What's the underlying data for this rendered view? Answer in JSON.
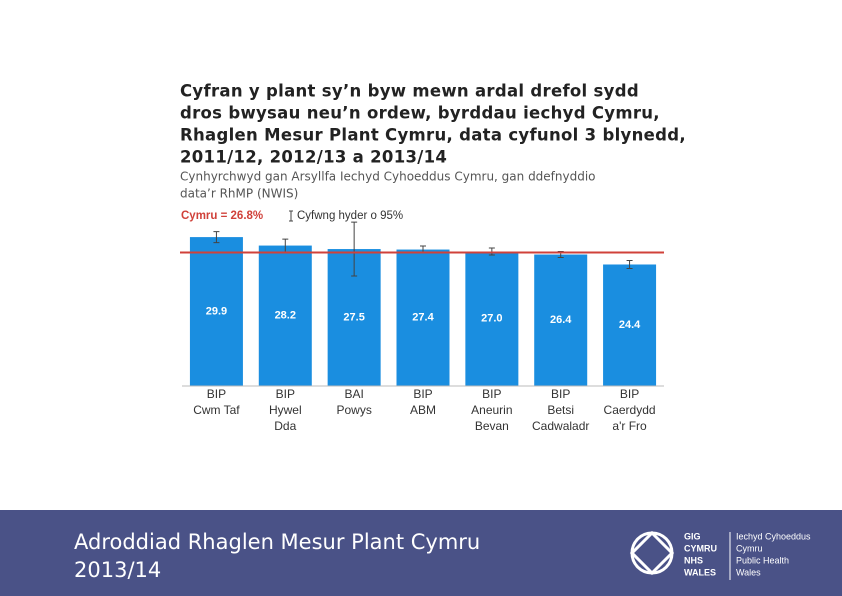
{
  "chart_data": {
    "type": "bar",
    "title": [
      "Cyfran y plant sy’n byw mewn ardal drefol sydd",
      "dros bwysau neu’n ordew, byrddau iechyd Cymru,",
      "Rhaglen Mesur Plant Cymru, data cyfunol 3 blynedd,",
      "2011/12, 2012/13 a 2013/14"
    ],
    "subtitle": [
      "Cynhyrchwyd gan Arsyllfa Iechyd Cyhoeddus Cymru, gan ddefnyddio",
      "data’r RhMP (NWIS)"
    ],
    "categories": [
      [
        "BIP",
        "Cwm Taf"
      ],
      [
        "BIP",
        "Hywel",
        "Dda"
      ],
      [
        "BAI",
        "Powys"
      ],
      [
        "BIP",
        "ABM"
      ],
      [
        "BIP",
        "Aneurin",
        "Bevan"
      ],
      [
        "BIP",
        "Betsi",
        "Cadwaladr"
      ],
      [
        "BIP",
        "Caerdydd",
        "a'r Fro"
      ]
    ],
    "values": [
      29.9,
      28.2,
      27.5,
      27.4,
      27.0,
      26.4,
      24.4
    ],
    "value_labels": [
      "29.9",
      "28.2",
      "27.5",
      "27.4",
      "27.0",
      "26.4",
      "24.4"
    ],
    "errors": [
      1.1,
      1.3,
      5.4,
      0.7,
      0.7,
      0.6,
      0.8
    ],
    "error_label": "Cyfwng hyder o 95%",
    "reference": {
      "value": 26.8,
      "label": "Cymru = 26.8%",
      "color": "#d0413a"
    },
    "color": "#1a8ee0",
    "ylim": [
      0,
      32
    ]
  },
  "footer": {
    "title": [
      "Adroddiad Rhaglen Mesur Plant Cymru",
      "2013/14"
    ],
    "logo": {
      "left": [
        "GIG",
        "CYMRU",
        "NHS",
        "WALES"
      ],
      "right": [
        "Iechyd Cyhoeddus",
        "Cymru",
        "Public Health",
        "Wales"
      ]
    }
  }
}
